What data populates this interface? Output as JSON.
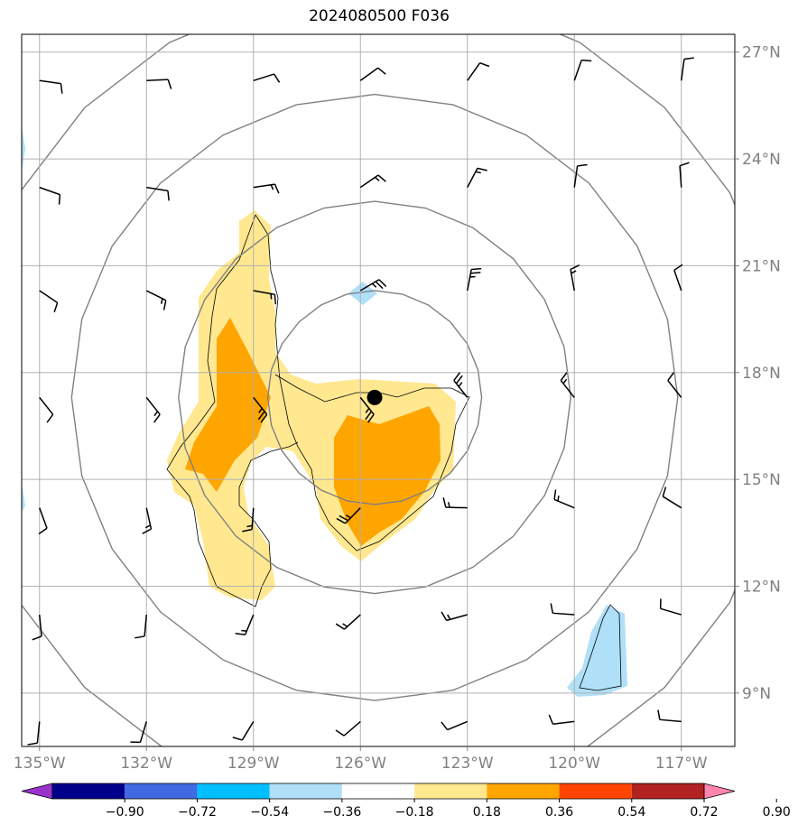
{
  "title": "2024080500 F036",
  "map": {
    "lon_range": [
      -135.5,
      -115.5
    ],
    "lat_range": [
      7.5,
      27.5
    ],
    "gridlines": true,
    "lon_ticks": [
      {
        "value": -135,
        "label": "135°W"
      },
      {
        "value": -132,
        "label": "132°W"
      },
      {
        "value": -129,
        "label": "129°W"
      },
      {
        "value": -126,
        "label": "126°W"
      },
      {
        "value": -123,
        "label": "123°W"
      },
      {
        "value": -120,
        "label": "120°W"
      },
      {
        "value": -117,
        "label": "117°W"
      }
    ],
    "lat_ticks": [
      {
        "value": 9,
        "label": "9°N"
      },
      {
        "value": 12,
        "label": "12°N"
      },
      {
        "value": 15,
        "label": "15°N"
      },
      {
        "value": 18,
        "label": "18°N"
      },
      {
        "value": 21,
        "label": "21°N"
      },
      {
        "value": 24,
        "label": "24°N"
      },
      {
        "value": 27,
        "label": "27°N"
      }
    ],
    "storm_center": {
      "lon": -125.6,
      "lat": 17.3
    },
    "range_ring_radii_deg": [
      3,
      5.5,
      8.5,
      11.5
    ]
  },
  "colorbar": {
    "levels": [
      "−0.90",
      "−0.72",
      "−0.54",
      "−0.36",
      "−0.18",
      "0.18",
      "0.36",
      "0.54",
      "0.72",
      "0.90"
    ],
    "colors": [
      "#9932cc",
      "#00008b",
      "#4169e1",
      "#00bfff",
      "#b0e0f8",
      "#ffffff",
      "#ffe890",
      "#ffa500",
      "#ff4500",
      "#b22222",
      "#ff85b0"
    ]
  }
}
